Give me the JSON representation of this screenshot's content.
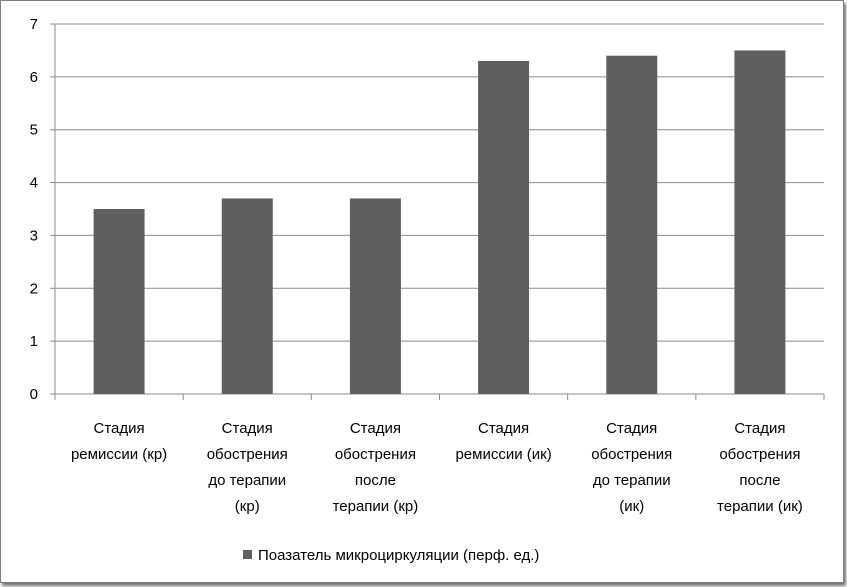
{
  "chart_data": {
    "type": "bar",
    "categories": [
      [
        "Стадия",
        "ремиссии (кр)"
      ],
      [
        "Стадия",
        "обострения",
        "до терапии",
        "(кр)"
      ],
      [
        "Стадия",
        "обострения",
        "после",
        "терапии (кр)"
      ],
      [
        "Стадия",
        "ремиссии (ик)"
      ],
      [
        "Стадия",
        "обострения",
        "до терапии",
        "(ик)"
      ],
      [
        "Стадия",
        "обострения",
        "после",
        "терапии (ик)"
      ]
    ],
    "series": [
      {
        "name": "Поазатель микроциркуляции (перф. ед.)",
        "values": [
          3.5,
          3.7,
          3.7,
          6.3,
          6.4,
          6.5
        ],
        "color": "#5f5f5f"
      }
    ],
    "ylim": [
      0,
      7
    ],
    "yticks": [
      0,
      1,
      2,
      3,
      4,
      5,
      6,
      7
    ],
    "grid": true,
    "legend_position": "bottom"
  }
}
